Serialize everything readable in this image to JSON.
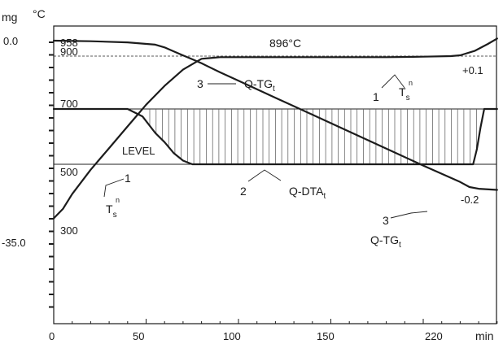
{
  "chart_data": {
    "type": "line",
    "x_unit": "min",
    "x_ticks": [
      "0",
      "50",
      "100",
      "150",
      "220"
    ],
    "left_axis": {
      "mass_unit": "mg",
      "temp_unit": "°C",
      "mass_ticks": [
        "0.0",
        "-35.0"
      ],
      "temp_ticks": [
        "958",
        "900",
        "700",
        "500",
        "300"
      ]
    },
    "right_ticks": [
      "+0.1",
      "-0.2"
    ],
    "annotations": {
      "plateau_temp": "896°C",
      "level": "LEVEL",
      "qtg": "Q-TG",
      "qdta": "Q-DTA",
      "sub_t": "t",
      "ts_main": "T",
      "ts_sub": "s",
      "ts_sup": "n",
      "n1": "1",
      "n2": "2",
      "n3": "3"
    },
    "series": [
      {
        "id": "temperature",
        "x": [
          0,
          5,
          10,
          20,
          30,
          40,
          50,
          60,
          70,
          80,
          90,
          100,
          120,
          150,
          180,
          200,
          215,
          220,
          228,
          235,
          240
        ],
        "y": [
          300,
          335,
          390,
          480,
          560,
          640,
          720,
          790,
          850,
          890,
          896,
          896,
          896,
          896,
          896,
          898,
          900,
          903,
          920,
          945,
          965
        ]
      },
      {
        "id": "q_tg",
        "x": [
          0,
          20,
          40,
          55,
          60,
          65,
          70,
          75,
          80,
          90,
          100,
          120,
          140,
          160,
          180,
          200,
          220,
          225,
          230,
          240
        ],
        "y": [
          0.0,
          -0.1,
          -0.3,
          -0.7,
          -1.2,
          -1.9,
          -2.6,
          -3.3,
          -4.0,
          -5.6,
          -7.1,
          -10.1,
          -13.1,
          -16.1,
          -19.1,
          -22.1,
          -25.0,
          -25.9,
          -26.2,
          -26.4
        ]
      },
      {
        "id": "q_dta",
        "x": [
          0,
          20,
          40,
          48,
          55,
          60,
          65,
          70,
          75,
          80,
          100,
          150,
          200,
          227,
          229,
          231,
          233,
          240
        ],
        "y": [
          0.1,
          0.1,
          0.1,
          0.06,
          -0.03,
          -0.08,
          -0.14,
          -0.18,
          -0.2,
          -0.2,
          -0.2,
          -0.2,
          -0.2,
          -0.2,
          -0.12,
          0.0,
          0.1,
          0.1
        ]
      }
    ]
  }
}
